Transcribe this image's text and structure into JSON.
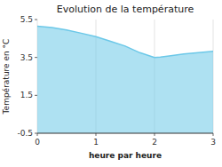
{
  "chart_data": {
    "type": "area",
    "title": "Evolution de la température",
    "xlabel": "heure par heure",
    "ylabel": "Température en °C",
    "x": [
      0,
      0.25,
      0.5,
      0.75,
      1.0,
      1.25,
      1.5,
      1.75,
      2.0,
      2.1,
      2.25,
      2.5,
      2.75,
      3.0
    ],
    "values": [
      5.15,
      5.08,
      4.95,
      4.78,
      4.6,
      4.35,
      4.1,
      3.75,
      3.5,
      3.52,
      3.58,
      3.68,
      3.75,
      3.82
    ],
    "color": "#6cc8e8",
    "xlim": [
      0,
      3
    ],
    "ylim": [
      -0.5,
      5.5
    ],
    "xticks": [
      0,
      1,
      2,
      3
    ],
    "yticks": [
      -0.5,
      1.5,
      3.5,
      5.5
    ],
    "grid": "x"
  }
}
